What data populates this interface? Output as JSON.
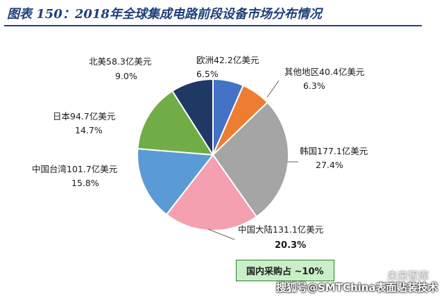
{
  "title": "图表 150：2018年全球集成电路前段设备市场分布情况",
  "chart_data": {
    "type": "pie",
    "slices": [
      {
        "label": "欧洲42.2亿美元",
        "percent_label": "6.5%",
        "value": 42.2,
        "color": "#4472c4"
      },
      {
        "label": "其他地区40.4亿美元",
        "percent_label": "6.3%",
        "value": 40.4,
        "color": "#ed7d31"
      },
      {
        "label": "韩国177.1亿美元",
        "percent_label": "27.4%",
        "value": 177.1,
        "color": "#a5a5a5"
      },
      {
        "label": "中国大陆131.1亿美元",
        "percent_label": "20.3%",
        "value": 131.1,
        "color": "#f4a0b0"
      },
      {
        "label": "中国台湾101.7亿美元",
        "percent_label": "15.8%",
        "value": 101.7,
        "color": "#5b9bd5"
      },
      {
        "label": "日本94.7亿美元",
        "percent_label": "14.7%",
        "value": 94.7,
        "color": "#70ad47"
      },
      {
        "label": "北美58.3亿美元",
        "percent_label": "9.0%",
        "value": 58.3,
        "color": "#1f3864"
      }
    ]
  },
  "note": "国内采购占 ~10%",
  "watermark": "搜狐号@SMTChina表面贴装技术",
  "watermark_top": "未来智库"
}
